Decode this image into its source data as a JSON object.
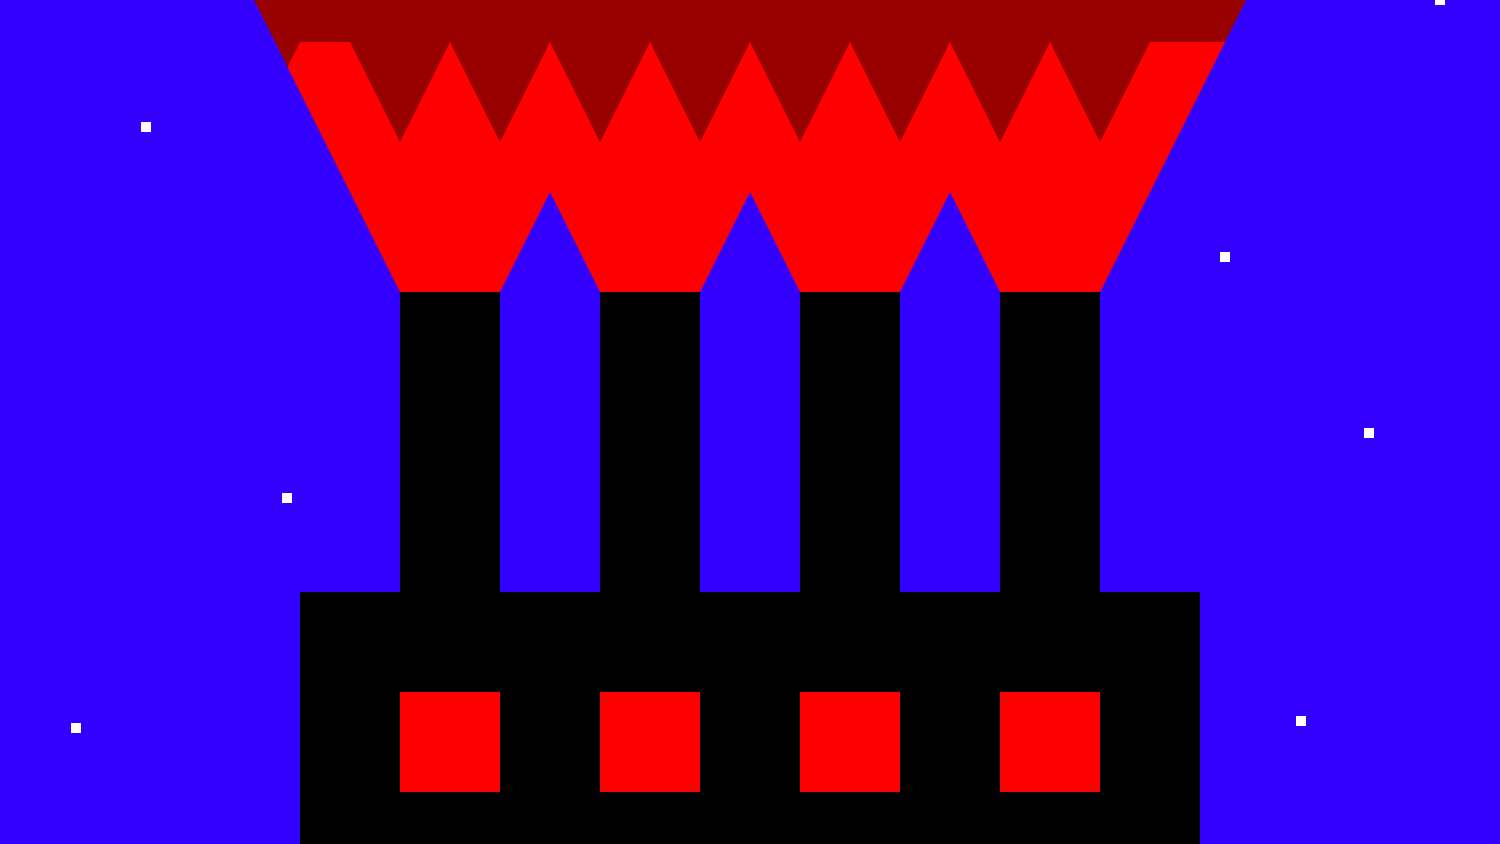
{
  "colors": {
    "sky": "#3300ff",
    "roof_dark": "#990000",
    "roof_bright": "#ff0000",
    "building": "#000000",
    "window": "#ff0000",
    "star": "#ffffff"
  }
}
